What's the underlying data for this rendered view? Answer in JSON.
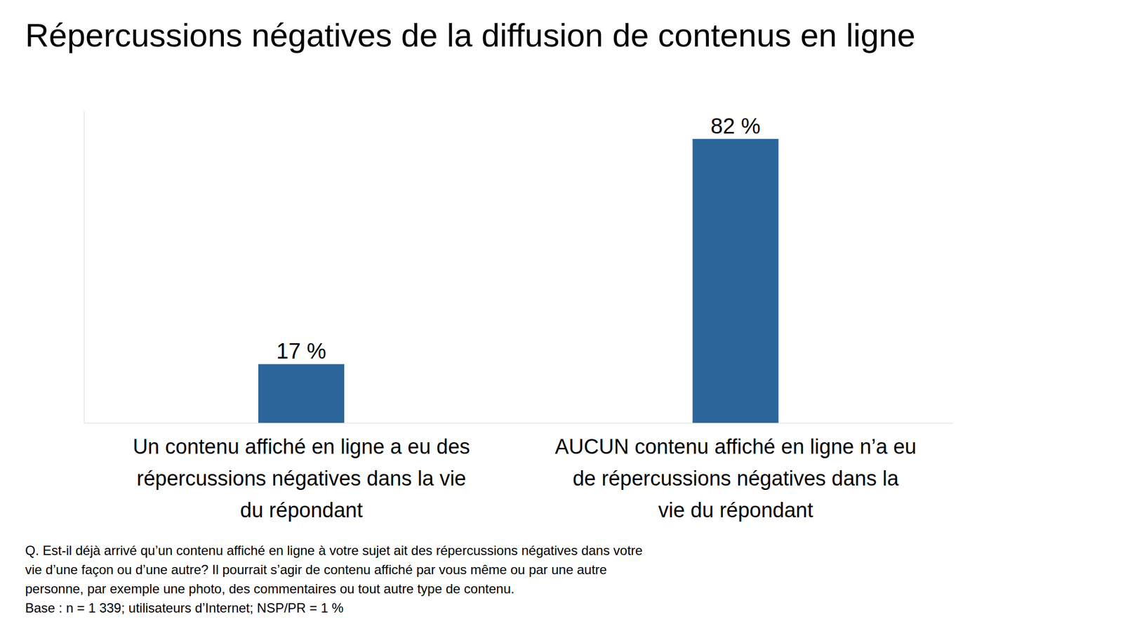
{
  "chart_data": {
    "type": "bar",
    "title": "Répercussions négatives de la diffusion de contenus en ligne",
    "categories": [
      "Un contenu affiché en ligne a eu des répercussions négatives dans la vie du répondant",
      "AUCUN contenu affiché en ligne n’a eu de répercussions négatives dans la vie du répondant"
    ],
    "values": [
      17,
      82
    ],
    "value_labels": [
      "17 %",
      "82 %"
    ],
    "color": "#2b6599",
    "data_labels": true,
    "ylim": [
      0,
      90
    ],
    "yticks": [],
    "tick_labels": "x",
    "grid": false,
    "footnote": [
      "Q. Est-il déjà arrivé qu’un contenu affiché en ligne à votre sujet ait des répercussions négatives dans votre",
      "vie d’une façon ou d’une autre? Il pourrait s’agir de contenu affiché par vous même ou par une autre",
      "personne, par exemple une photo, des commentaires ou tout autre type de contenu.",
      "Base : n = 1 339; utilisateurs d’Internet; NSP/PR = 1 %"
    ]
  }
}
